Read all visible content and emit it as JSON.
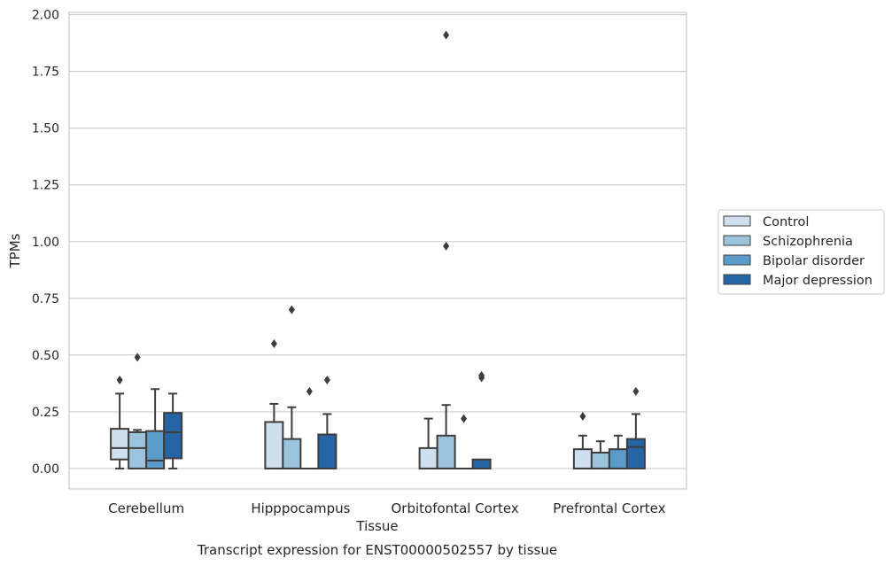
{
  "chart_data": {
    "type": "boxplot",
    "title": "",
    "xlabel": "Tissue",
    "ylabel": "TPMs",
    "caption": "Transcript expression for ENST00000502557 by tissue",
    "categories": [
      "Cerebellum",
      "Hipppocampus",
      "Orbitofontal Cortex",
      "Prefrontal Cortex"
    ],
    "ylim": [
      -0.09,
      2.01
    ],
    "yticks": [
      "0.00",
      "0.25",
      "0.50",
      "0.75",
      "1.00",
      "1.25",
      "1.50",
      "1.75",
      "2.00"
    ],
    "grid": "horizontal",
    "legend_position": "right",
    "series": [
      {
        "name": "Control",
        "color": "#d0dfee",
        "boxes": [
          {
            "min": 0.0,
            "q1": 0.04,
            "median": 0.09,
            "q3": 0.175,
            "max": 0.33,
            "outliers": [
              0.39
            ]
          },
          {
            "min": 0.0,
            "q1": 0.0,
            "median": 0.0,
            "q3": 0.205,
            "max": 0.285,
            "outliers": [
              0.55
            ]
          },
          {
            "min": 0.0,
            "q1": 0.0,
            "median": 0.0,
            "q3": 0.09,
            "max": 0.22,
            "outliers": []
          },
          {
            "min": 0.0,
            "q1": 0.0,
            "median": 0.0,
            "q3": 0.085,
            "max": 0.145,
            "outliers": [
              0.23
            ]
          }
        ]
      },
      {
        "name": "Schizophrenia",
        "color": "#9bc3dc",
        "boxes": [
          {
            "min": 0.0,
            "q1": 0.0,
            "median": 0.09,
            "q3": 0.16,
            "max": 0.17,
            "outliers": [
              0.49
            ]
          },
          {
            "min": 0.0,
            "q1": 0.0,
            "median": 0.0,
            "q3": 0.13,
            "max": 0.27,
            "outliers": [
              0.7
            ]
          },
          {
            "min": 0.0,
            "q1": 0.0,
            "median": 0.0,
            "q3": 0.145,
            "max": 0.28,
            "outliers": [
              0.98,
              1.91
            ]
          },
          {
            "min": 0.0,
            "q1": 0.0,
            "median": 0.0,
            "q3": 0.07,
            "max": 0.12,
            "outliers": []
          }
        ]
      },
      {
        "name": "Bipolar disorder",
        "color": "#5a9bc9",
        "boxes": [
          {
            "min": 0.0,
            "q1": 0.0,
            "median": 0.035,
            "q3": 0.165,
            "max": 0.35,
            "outliers": []
          },
          {
            "min": 0.0,
            "q1": 0.0,
            "median": 0.0,
            "q3": 0.0,
            "max": 0.0,
            "outliers": [
              0.34
            ]
          },
          {
            "min": 0.0,
            "q1": 0.0,
            "median": 0.0,
            "q3": 0.0,
            "max": 0.0,
            "outliers": [
              0.22
            ]
          },
          {
            "min": 0.0,
            "q1": 0.0,
            "median": 0.0,
            "q3": 0.085,
            "max": 0.145,
            "outliers": []
          }
        ]
      },
      {
        "name": "Major depression",
        "color": "#2565a6",
        "boxes": [
          {
            "min": 0.0,
            "q1": 0.045,
            "median": 0.16,
            "q3": 0.245,
            "max": 0.33,
            "outliers": []
          },
          {
            "min": 0.0,
            "q1": 0.0,
            "median": 0.0,
            "q3": 0.15,
            "max": 0.24,
            "outliers": [
              0.39
            ]
          },
          {
            "min": 0.0,
            "q1": 0.0,
            "median": 0.0,
            "q3": 0.04,
            "max": 0.04,
            "outliers": [
              0.4,
              0.41
            ]
          },
          {
            "min": 0.0,
            "q1": 0.0,
            "median": 0.095,
            "q3": 0.13,
            "max": 0.24,
            "outliers": [
              0.34
            ]
          }
        ]
      }
    ]
  },
  "colors": {
    "edge": "#3d3d3d",
    "grid": "#cccccc",
    "frame": "#cccccc"
  }
}
